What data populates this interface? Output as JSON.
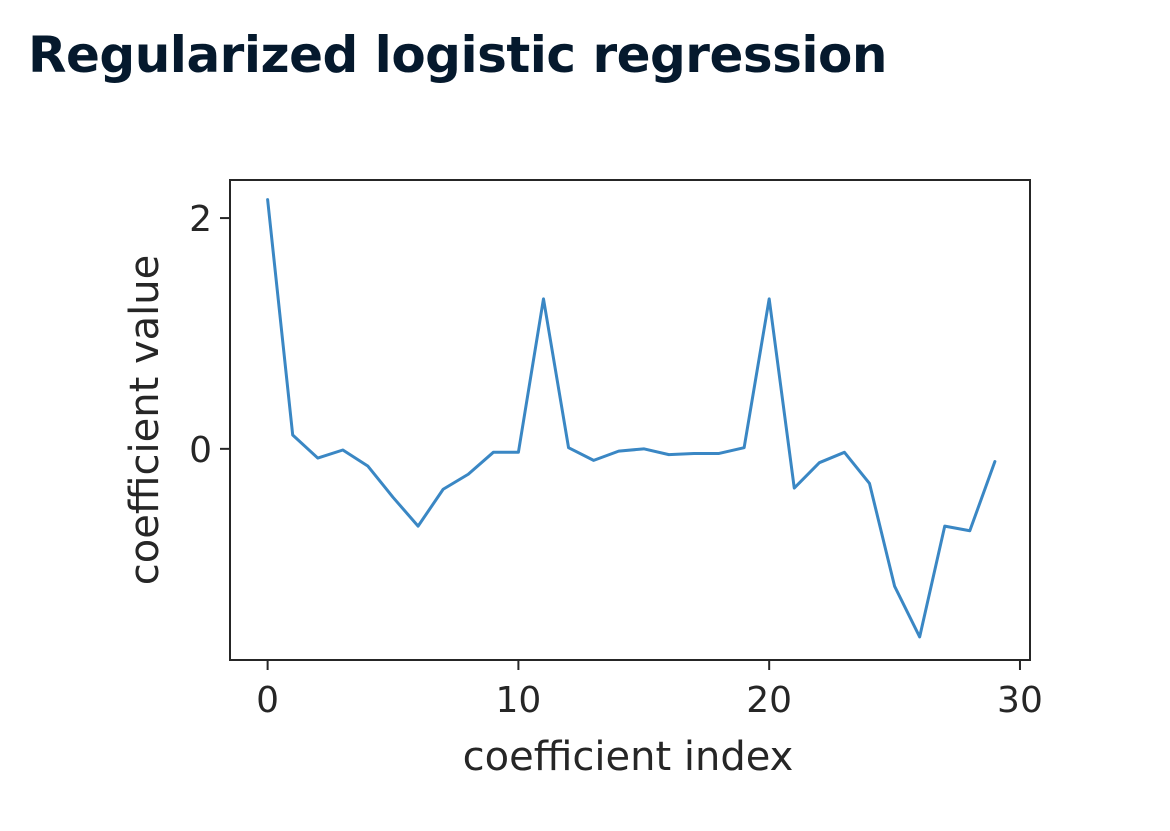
{
  "slide": {
    "title": "Regularized logistic regression"
  },
  "chart_data": {
    "type": "line",
    "title": "",
    "xlabel": "coefficient index",
    "ylabel": "coefficient value",
    "xlim": [
      -1.5,
      30.4
    ],
    "ylim": [
      -1.83,
      2.33
    ],
    "xticks": [
      0,
      10,
      20,
      30
    ],
    "yticks": [
      0,
      2
    ],
    "grid": false,
    "line_color": "#3a87c4",
    "series": [
      {
        "x": [
          0,
          1,
          2,
          3,
          4,
          5,
          6,
          7,
          8,
          9,
          10,
          11,
          12,
          13,
          14,
          15,
          16,
          17,
          18,
          19,
          20,
          21,
          22,
          23,
          24,
          25,
          26,
          27,
          28,
          29
        ],
        "values": [
          2.16,
          0.12,
          -0.08,
          -0.01,
          -0.15,
          -0.42,
          -0.67,
          -0.35,
          -0.22,
          -0.03,
          -0.03,
          1.3,
          0.01,
          -0.1,
          -0.02,
          0.0,
          -0.05,
          -0.04,
          -0.04,
          0.01,
          1.3,
          -0.34,
          -0.12,
          -0.03,
          -0.3,
          -1.19,
          -1.63,
          -0.67,
          -0.71,
          -0.11
        ]
      }
    ]
  }
}
